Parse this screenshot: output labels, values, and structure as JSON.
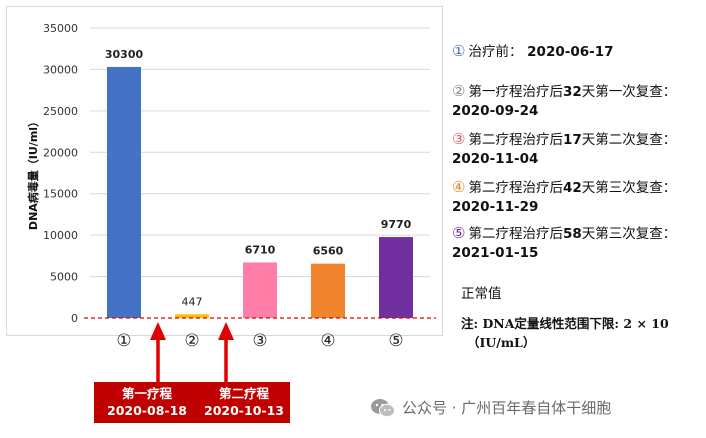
{
  "chart_data": {
    "type": "bar",
    "ylabel": "DNA病毒量（IU/ml）",
    "ylim": [
      0,
      35000
    ],
    "yticks": [
      0,
      5000,
      10000,
      15000,
      20000,
      25000,
      30000,
      35000
    ],
    "categories": [
      "①",
      "②",
      "③",
      "④",
      "⑤"
    ],
    "values": [
      30300,
      447,
      6710,
      6560,
      9770
    ],
    "colors": [
      "#4472c4",
      "#ffc000",
      "#ff7fa8",
      "#f0852d",
      "#7030a0"
    ],
    "grid": true,
    "reference_line": {
      "value": 0,
      "color": "#e00000",
      "style": "dashed"
    }
  },
  "legend": [
    {
      "circle": "①",
      "circle_color": "#4a6fb5",
      "text": "治疗前：",
      "date": "2020-06-17"
    },
    {
      "circle": "②",
      "circle_color": "#8a8a8a",
      "text": "第一疗程治疗后",
      "num": "32",
      "tail": "天第一次复查：",
      "date": "2020-09-24"
    },
    {
      "circle": "③",
      "circle_color": "#e05b6b",
      "text": "第二疗程治疗后",
      "num": "17",
      "tail": "天第二次复查：",
      "date": "2020-11-04"
    },
    {
      "circle": "④",
      "circle_color": "#f0852d",
      "text": "第二疗程治疗后",
      "num": "42",
      "tail": "天第三次复查：",
      "date": "2020-11-29"
    },
    {
      "circle": "⑤",
      "circle_color": "#7030a0",
      "text": "第二疗程治疗后",
      "num": "58",
      "tail": "天第三次复查：",
      "date": "2021-01-15"
    }
  ],
  "treatments": [
    {
      "label": "第一疗程",
      "date": "2020-08-18"
    },
    {
      "label": "第二疗程",
      "date": "2020-10-13"
    }
  ],
  "normal_label": "正常值",
  "note": {
    "line1": "注:   DNA定量线性范围下限:   2 × 10",
    "line2": "（IU/mL）"
  },
  "watermark": {
    "text": "公众号 · 广州百年春自体干细胞",
    "icon": "wechat-icon"
  }
}
